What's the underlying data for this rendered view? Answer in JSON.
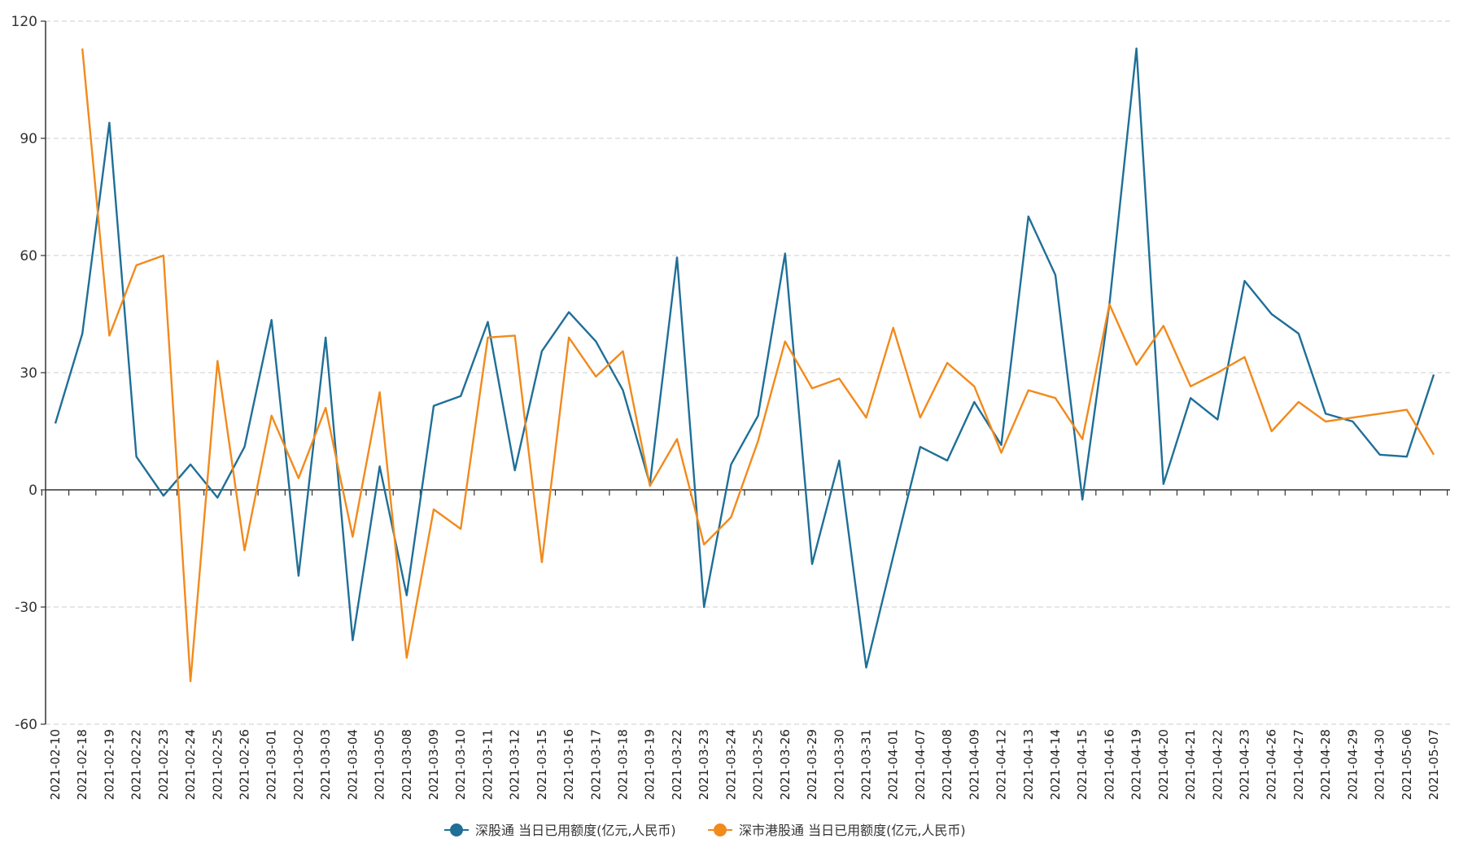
{
  "chart_data": {
    "type": "line",
    "title": "",
    "xlabel": "",
    "ylabel": "",
    "ylim": [
      -60,
      120
    ],
    "yticks": [
      -60,
      -30,
      0,
      30,
      60,
      90,
      120
    ],
    "grid": "horizontal dashed",
    "legend_position": "bottom-center",
    "categories": [
      "2021-02-10",
      "2021-02-18",
      "2021-02-19",
      "2021-02-22",
      "2021-02-23",
      "2021-02-24",
      "2021-02-25",
      "2021-02-26",
      "2021-03-01",
      "2021-03-02",
      "2021-03-03",
      "2021-03-04",
      "2021-03-05",
      "2021-03-08",
      "2021-03-09",
      "2021-03-10",
      "2021-03-11",
      "2021-03-12",
      "2021-03-15",
      "2021-03-16",
      "2021-03-17",
      "2021-03-18",
      "2021-03-19",
      "2021-03-22",
      "2021-03-23",
      "2021-03-24",
      "2021-03-25",
      "2021-03-26",
      "2021-03-29",
      "2021-03-30",
      "2021-03-31",
      "2021-04-01",
      "2021-04-07",
      "2021-04-08",
      "2021-04-09",
      "2021-04-12",
      "2021-04-13",
      "2021-04-14",
      "2021-04-15",
      "2021-04-16",
      "2021-04-19",
      "2021-04-20",
      "2021-04-21",
      "2021-04-22",
      "2021-04-23",
      "2021-04-26",
      "2021-04-27",
      "2021-04-28",
      "2021-04-29",
      "2021-04-30",
      "2021-05-06",
      "2021-05-07"
    ],
    "series": [
      {
        "name": "深股通 当日已用额度(亿元,人民币)",
        "color": "#1f6f97",
        "values": [
          17,
          40,
          94,
          8.5,
          -1.5,
          6.5,
          -2,
          11,
          43.5,
          -22,
          39,
          -38.5,
          6,
          -27,
          21.5,
          24,
          43,
          5,
          35.5,
          45.5,
          38,
          25.5,
          1.5,
          59.5,
          -30,
          6.5,
          19,
          60.5,
          -19,
          7.5,
          -45.5,
          -17,
          11,
          7.5,
          22.5,
          11.5,
          70,
          55,
          -2.5,
          47.5,
          113,
          1.5,
          23.5,
          18,
          53.5,
          45,
          40,
          19.5,
          17.5,
          9,
          8.5,
          29.5
        ]
      },
      {
        "name": "深市港股通 当日已用额度(亿元,人民币)",
        "color": "#f28a1c",
        "values": [
          null,
          113,
          39.5,
          57.5,
          60,
          -49,
          33,
          -15.5,
          19,
          3,
          21,
          -12,
          25,
          -43,
          -5,
          -10,
          39,
          39.5,
          -18.5,
          39,
          29,
          35.5,
          1,
          13,
          -14,
          -7,
          12.5,
          38,
          26,
          28.5,
          18.5,
          41.5,
          18.5,
          32.5,
          26.5,
          9.5,
          25.5,
          23.5,
          13,
          47.5,
          32,
          42,
          26.5,
          30,
          34,
          15,
          22.5,
          17.5,
          18.5,
          19.5,
          20.5,
          9
        ]
      }
    ]
  }
}
